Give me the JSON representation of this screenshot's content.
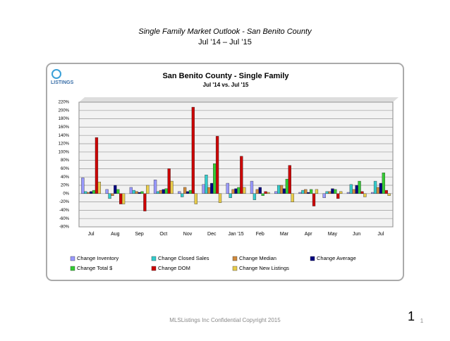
{
  "slide": {
    "title": "Single Family Market Outlook - San Benito County",
    "subtitle": "Jul ’14 – Jul ’15",
    "footer": "MLSListings Inc Confidential Copyright 2015",
    "page_number_large": "1",
    "page_number_small": "1",
    "logo": "LISTINGS"
  },
  "chart_data": {
    "type": "bar",
    "title": "San Benito County - Single Family",
    "subtitle": "Jul '14 vs. Jul '15",
    "categories": [
      "Jul",
      "Aug",
      "Sep",
      "Oct",
      "Nov",
      "Dec",
      "Jan '15",
      "Feb",
      "Mar",
      "Apr",
      "May",
      "Jun",
      "Jul"
    ],
    "series": [
      {
        "name": "Change Inventory",
        "color": "#9999ff",
        "values": [
          38,
          10,
          15,
          33,
          5,
          22,
          25,
          30,
          5,
          3,
          -10,
          3,
          3
        ]
      },
      {
        "name": "Change Closed Sales",
        "color": "#33cccc",
        "values": [
          5,
          -12,
          8,
          5,
          -8,
          45,
          -10,
          -15,
          20,
          8,
          5,
          22,
          30
        ]
      },
      {
        "name": "Change Median",
        "color": "#d08a3c",
        "values": [
          3,
          -5,
          5,
          8,
          15,
          15,
          10,
          10,
          20,
          10,
          5,
          10,
          15
        ]
      },
      {
        "name": "Change Average",
        "color": "#000080",
        "values": [
          5,
          20,
          3,
          10,
          5,
          25,
          12,
          15,
          12,
          3,
          12,
          20,
          25
        ]
      },
      {
        "name": "Change Total $",
        "color": "#33cc33",
        "values": [
          8,
          10,
          5,
          12,
          8,
          72,
          15,
          -5,
          35,
          10,
          10,
          30,
          50
        ]
      },
      {
        "name": "Change DOM",
        "color": "#cc0000",
        "values": [
          135,
          -25,
          -42,
          60,
          208,
          138,
          90,
          5,
          68,
          -30,
          -12,
          5,
          8
        ]
      },
      {
        "name": "Change New Listings",
        "color": "#e8cc4a",
        "values": [
          28,
          -25,
          20,
          30,
          -25,
          -22,
          15,
          3,
          -20,
          10,
          5,
          -8,
          -5
        ]
      }
    ],
    "ylim": [
      -80,
      220
    ],
    "yticks": [
      {
        "value": -80,
        "label": "-80%"
      },
      {
        "value": -60,
        "label": "-60%"
      },
      {
        "value": -40,
        "label": "-40%"
      },
      {
        "value": -20,
        "label": "-20%"
      },
      {
        "value": 0,
        "label": "0%"
      },
      {
        "value": 20,
        "label": "20%"
      },
      {
        "value": 40,
        "label": "40%"
      },
      {
        "value": 60,
        "label": "60%"
      },
      {
        "value": 80,
        "label": "80%"
      },
      {
        "value": 100,
        "label": "100%"
      },
      {
        "value": 120,
        "label": "120%"
      },
      {
        "value": 140,
        "label": "140%"
      },
      {
        "value": 160,
        "label": "160%"
      },
      {
        "value": 180,
        "label": "180%"
      },
      {
        "value": 200,
        "label": "200%"
      },
      {
        "value": 220,
        "label": "220%"
      }
    ],
    "grid": true
  }
}
